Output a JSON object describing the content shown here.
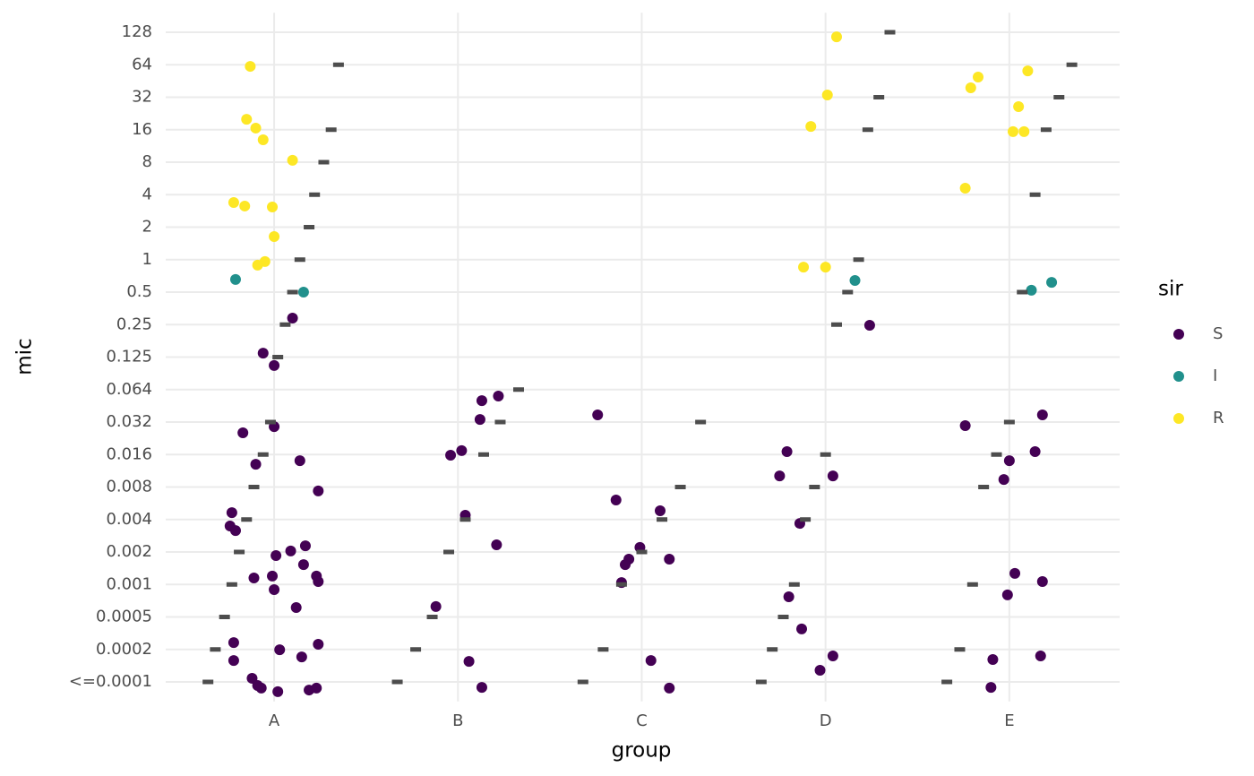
{
  "chart_data": {
    "type": "scatter",
    "x_label": "group",
    "y_label": "mic",
    "legend_title": "sir",
    "legend_position": "right",
    "grid": true,
    "xlim": [
      0.41,
      5.6
    ],
    "xticks": [
      {
        "value": 1,
        "label": "A"
      },
      {
        "value": 2,
        "label": "B"
      },
      {
        "value": 3,
        "label": "C"
      },
      {
        "value": 4,
        "label": "D"
      },
      {
        "value": 5,
        "label": "E"
      }
    ],
    "ylim": [
      0.4,
      21.6
    ],
    "yticks": [
      {
        "value": 1,
        "label": "<=0.0001"
      },
      {
        "value": 2,
        "label": "0.0002"
      },
      {
        "value": 3,
        "label": "0.0005"
      },
      {
        "value": 4,
        "label": "0.001"
      },
      {
        "value": 5,
        "label": "0.002"
      },
      {
        "value": 6,
        "label": "0.004"
      },
      {
        "value": 7,
        "label": "0.008"
      },
      {
        "value": 8,
        "label": "0.016"
      },
      {
        "value": 9,
        "label": "0.032"
      },
      {
        "value": 10,
        "label": "0.064"
      },
      {
        "value": 11,
        "label": "0.125"
      },
      {
        "value": 12,
        "label": "0.25"
      },
      {
        "value": 13,
        "label": "0.5"
      },
      {
        "value": 14,
        "label": "1"
      },
      {
        "value": 15,
        "label": "2"
      },
      {
        "value": 16,
        "label": "4"
      },
      {
        "value": 17,
        "label": "8"
      },
      {
        "value": 18,
        "label": "16"
      },
      {
        "value": 19,
        "label": "32"
      },
      {
        "value": 20,
        "label": "64"
      },
      {
        "value": 21,
        "label": "128"
      }
    ],
    "series": [
      {
        "name": "S",
        "color": "#440154",
        "x": [
          1.1,
          0.94,
          1.0,
          1.0,
          0.83,
          0.9,
          1.14,
          1.24,
          0.77,
          0.76,
          0.79,
          1.17,
          1.09,
          1.01,
          1.16,
          0.89,
          0.99,
          1.23,
          1.24,
          1.0,
          1.12,
          0.78,
          1.03,
          1.24,
          1.15,
          0.78,
          0.88,
          0.91,
          0.93,
          1.02,
          1.19,
          1.23,
          2.13,
          2.22,
          2.12,
          2.02,
          1.96,
          2.04,
          2.21,
          1.88,
          2.06,
          2.13,
          2.76,
          2.86,
          3.1,
          2.99,
          2.93,
          2.91,
          3.15,
          2.89,
          3.05,
          3.15,
          4.24,
          3.79,
          3.75,
          4.04,
          3.86,
          3.8,
          3.87,
          4.04,
          3.97,
          5.18,
          4.76,
          5.14,
          5.0,
          4.97,
          5.03,
          5.18,
          4.99,
          4.91,
          5.17,
          4.9
        ],
        "values": [
          12.2,
          11.12,
          10.74,
          8.86,
          8.67,
          7.7,
          7.81,
          6.88,
          6.21,
          5.8,
          5.66,
          5.19,
          5.03,
          4.89,
          4.61,
          4.2,
          4.26,
          4.26,
          4.09,
          3.84,
          3.29,
          2.21,
          1.99,
          2.16,
          1.77,
          1.66,
          1.11,
          0.89,
          0.81,
          0.7,
          0.75,
          0.81,
          9.66,
          9.8,
          9.08,
          8.12,
          7.98,
          6.13,
          5.22,
          3.32,
          1.63,
          0.83,
          9.22,
          6.6,
          6.27,
          5.14,
          4.78,
          4.61,
          4.78,
          4.06,
          1.66,
          0.81,
          11.98,
          8.09,
          7.34,
          7.34,
          5.88,
          3.62,
          2.63,
          1.8,
          1.36,
          9.22,
          8.89,
          8.09,
          7.81,
          7.23,
          4.34,
          4.09,
          3.68,
          1.69,
          1.8,
          0.83
        ]
      },
      {
        "name": "I",
        "color": "#21908C",
        "x": [
          0.79,
          1.16,
          4.16,
          5.12,
          5.23
        ],
        "values": [
          13.39,
          13.0,
          13.36,
          13.06,
          13.3
        ]
      },
      {
        "name": "R",
        "color": "#FDE725",
        "x": [
          0.87,
          0.85,
          0.9,
          0.94,
          1.1,
          0.78,
          0.84,
          0.99,
          1.0,
          0.95,
          0.91,
          4.06,
          4.01,
          3.92,
          3.88,
          4.0,
          5.1,
          4.83,
          4.79,
          5.05,
          5.02,
          5.08,
          4.76
        ],
        "values": [
          19.95,
          18.32,
          18.05,
          17.69,
          17.06,
          15.76,
          15.65,
          15.62,
          14.71,
          13.94,
          13.83,
          20.86,
          19.07,
          18.1,
          13.77,
          13.77,
          19.81,
          19.62,
          19.29,
          18.71,
          17.94,
          17.94,
          16.2
        ]
      },
      {
        "color": "#4d4d4d",
        "marker": "dash",
        "x": [
          1.35,
          1.31,
          1.27,
          1.22,
          1.19,
          1.14,
          1.1,
          1.06,
          1.02,
          0.98,
          0.94,
          0.89,
          0.85,
          0.81,
          0.77,
          0.73,
          0.68,
          0.64,
          2.33,
          2.23,
          2.14,
          2.04,
          1.95,
          1.86,
          1.77,
          1.67,
          3.32,
          3.21,
          3.11,
          3.0,
          2.89,
          2.79,
          2.68,
          4.35,
          4.29,
          4.23,
          4.18,
          4.12,
          4.06,
          4.0,
          3.94,
          3.89,
          3.83,
          3.77,
          3.71,
          3.65,
          5.34,
          5.27,
          5.2,
          5.14,
          5.07,
          5.0,
          4.93,
          4.86,
          4.8,
          4.73,
          4.66
        ],
        "values": [
          20,
          18,
          17,
          16,
          15,
          14,
          13,
          12,
          11,
          9,
          8,
          7,
          6,
          5,
          4,
          3,
          2,
          1,
          10,
          9,
          8,
          6,
          5,
          3,
          2,
          1,
          9,
          7,
          6,
          5,
          4,
          2,
          1,
          21,
          19,
          18,
          14,
          13,
          12,
          8,
          7,
          6,
          4,
          3,
          2,
          1,
          20,
          19,
          18,
          16,
          13,
          9,
          8,
          7,
          4,
          2,
          1
        ]
      }
    ]
  }
}
